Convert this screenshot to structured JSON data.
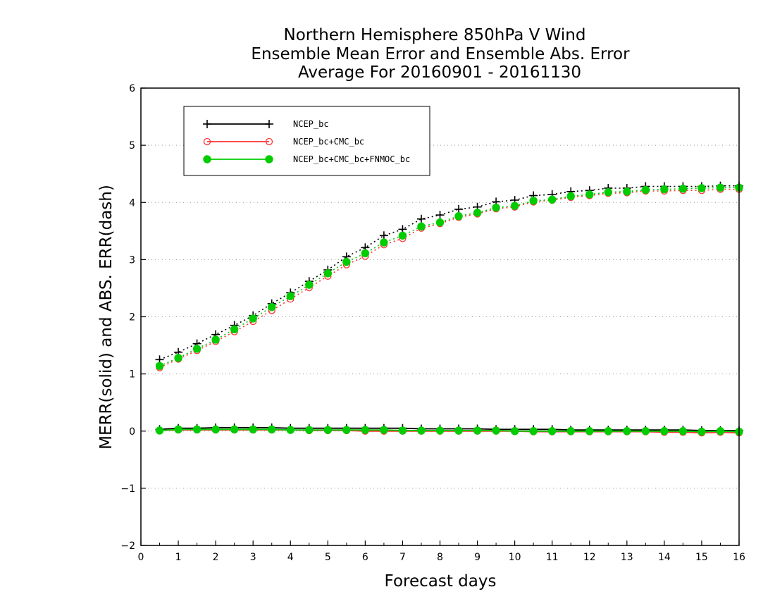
{
  "chart_data": {
    "type": "line",
    "title": [
      "Northern Hemisphere 850hPa V Wind",
      "Ensemble Mean Error and Ensemble Abs. Error",
      "Average For 20160901 - 20161130"
    ],
    "xlabel": "Forecast days",
    "ylabel": "MERR(solid) and ABS. ERR(dash)",
    "xlim": [
      0,
      16
    ],
    "ylim": [
      -2,
      6
    ],
    "x_ticks": [
      "0",
      "1",
      "2",
      "3",
      "4",
      "5",
      "6",
      "7",
      "8",
      "9",
      "10",
      "11",
      "12",
      "13",
      "14",
      "15",
      "16"
    ],
    "y_ticks": [
      "−2",
      "−1",
      "0",
      "1",
      "2",
      "3",
      "4",
      "5",
      "6"
    ],
    "grid": "horizontal dotted",
    "legend_position": "top-left",
    "x": [
      0.5,
      1,
      1.5,
      2,
      2.5,
      3,
      3.5,
      4,
      4.5,
      5,
      5.5,
      6,
      6.5,
      7,
      7.5,
      8,
      8.5,
      9,
      9.5,
      10,
      10.5,
      11,
      11.5,
      12,
      12.5,
      13,
      13.5,
      14,
      14.5,
      15,
      15.5,
      16
    ],
    "series": [
      {
        "name": "NCEP_bc",
        "color": "#000000",
        "marker": "plus",
        "merr": [
          0.03,
          0.05,
          0.05,
          0.06,
          0.06,
          0.06,
          0.06,
          0.05,
          0.05,
          0.05,
          0.05,
          0.05,
          0.05,
          0.05,
          0.04,
          0.04,
          0.04,
          0.04,
          0.03,
          0.03,
          0.03,
          0.03,
          0.02,
          0.02,
          0.02,
          0.02,
          0.02,
          0.02,
          0.02,
          0.01,
          0.01,
          0.01
        ],
        "abs_err": [
          1.25,
          1.38,
          1.53,
          1.69,
          1.85,
          2.02,
          2.23,
          2.42,
          2.62,
          2.82,
          3.05,
          3.21,
          3.42,
          3.53,
          3.71,
          3.78,
          3.88,
          3.92,
          4.01,
          4.04,
          4.12,
          4.14,
          4.19,
          4.21,
          4.25,
          4.25,
          4.28,
          4.28,
          4.28,
          4.28,
          4.29,
          4.29
        ]
      },
      {
        "name": "NCEP_bc+CMC_bc",
        "color": "#ff3333",
        "marker": "open-circle",
        "merr": [
          0.01,
          0.02,
          0.02,
          0.02,
          0.02,
          0.02,
          0.02,
          0.02,
          0.01,
          0.01,
          0.01,
          0.0,
          0.0,
          0.0,
          0.0,
          0.0,
          0.0,
          0.0,
          0.0,
          0.0,
          -0.01,
          -0.01,
          -0.01,
          -0.01,
          -0.01,
          -0.01,
          -0.01,
          -0.02,
          -0.02,
          -0.03,
          -0.02,
          -0.03
        ],
        "abs_err": [
          1.11,
          1.26,
          1.41,
          1.57,
          1.74,
          1.92,
          2.11,
          2.31,
          2.51,
          2.71,
          2.91,
          3.06,
          3.26,
          3.37,
          3.55,
          3.63,
          3.74,
          3.8,
          3.89,
          3.92,
          4.01,
          4.04,
          4.09,
          4.12,
          4.16,
          4.17,
          4.2,
          4.2,
          4.21,
          4.21,
          4.23,
          4.23
        ]
      },
      {
        "name": "NCEP_bc+CMC_bc+FNMOC_bc",
        "color": "#00cc00",
        "marker": "filled-circle",
        "merr": [
          0.01,
          0.03,
          0.03,
          0.03,
          0.03,
          0.03,
          0.03,
          0.02,
          0.02,
          0.02,
          0.02,
          0.02,
          0.02,
          0.01,
          0.01,
          0.01,
          0.01,
          0.01,
          0.01,
          0.0,
          0.0,
          0.0,
          0.0,
          0.0,
          0.0,
          0.0,
          0.0,
          0.0,
          0.0,
          -0.01,
          0.0,
          -0.01
        ],
        "abs_err": [
          1.14,
          1.28,
          1.44,
          1.6,
          1.78,
          1.97,
          2.17,
          2.36,
          2.56,
          2.76,
          2.96,
          3.11,
          3.3,
          3.42,
          3.58,
          3.65,
          3.76,
          3.82,
          3.91,
          3.94,
          4.03,
          4.05,
          4.11,
          4.14,
          4.18,
          4.19,
          4.22,
          4.23,
          4.24,
          4.25,
          4.26,
          4.26
        ]
      }
    ]
  }
}
